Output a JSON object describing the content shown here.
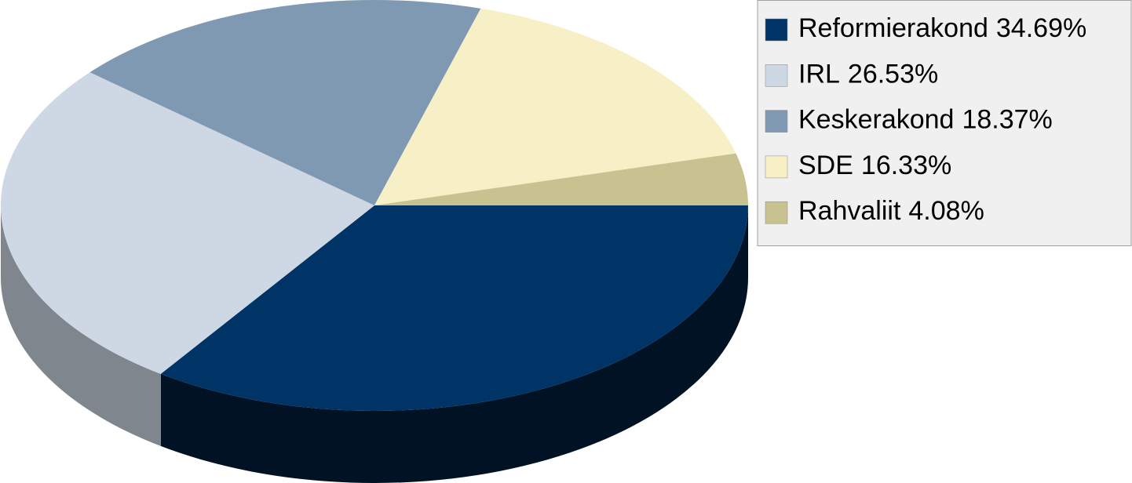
{
  "chart_data": {
    "type": "pie",
    "categories": [
      "Reformierakond",
      "IRL",
      "Keskerakond",
      "SDE",
      "Rahvaliit"
    ],
    "values": [
      34.69,
      26.53,
      18.37,
      16.33,
      4.08
    ],
    "value_labels": [
      "34.69%",
      "26.53%",
      "18.37%",
      "16.33%",
      "4.08%"
    ],
    "colors": [
      "#003466",
      "#cdd8e4",
      "#7f99b2",
      "#f7efc6",
      "#c8c291"
    ],
    "legend": "right"
  }
}
